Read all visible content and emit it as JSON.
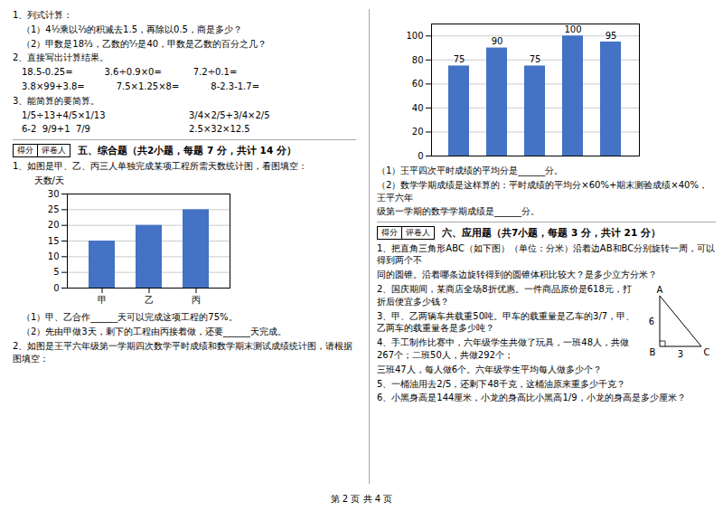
{
  "chart_data": [
    {
      "type": "bar",
      "categories": [
        "甲",
        "乙",
        "丙"
      ],
      "values": [
        15,
        20,
        25
      ],
      "color": "#4472C4",
      "ylabel": "天数/天",
      "ylim": [
        0,
        30
      ],
      "yticks": [
        0,
        5,
        10,
        15,
        20,
        25,
        30
      ],
      "grid": true,
      "annotations": [
        "1、列式计算：",
        "（1）4½乘以⅔的积减去1.5，再除以0.5，商是多少？",
        "（2）甲数是18⅔，乙数的⁵⁄₇是40，甲数是乙数的百分之几？",
        "2、直接写出计算结果。",
        "18.5-0.25=           3.6÷0.9×0=           7.2÷0.1=",
        "3.8×99+3.8=           7.5×1.25×8=           8-2.3-1.7=",
        "3、能简算的要简算。",
        "1/5÷13+4/5×1/13",
        "3/4×2/5+3/4×2/5",
        "6-2  9/9+1  7/9",
        "2.5×32×12.5",
        "得分",
        "评卷人",
        "五、综合题（共2小题，每题 7 分，共计 14 分）",
        "1、如图是甲、乙、丙三人单独完成某项工程所需天数统计图，看图填空：",
        "（1）甲、乙合作______天可以完成这项工程的75%。",
        "（2）先由甲做3天，剩下的工程由丙接着做，还要______天完成。",
        "2、如图是王平六年级第一学期四次数学平时成绩和数学期末测试成绩统计图，请根据图填空："
      ]
    },
    {
      "type": "bar",
      "categories": [
        null,
        null,
        null,
        null,
        null
      ],
      "values": [
        75,
        90,
        75,
        100,
        95
      ],
      "color": "#4472C4",
      "ylim": [
        0,
        110
      ],
      "yticks": [
        0,
        20,
        40,
        60,
        80,
        100
      ],
      "grid": true,
      "data_labels": true,
      "tick_labels": "y",
      "annotations": [
        "（1）王平四次平时成绩的平均分是______分。",
        "（2）数学学期成绩是这样算的：平时成绩的平均分×60%+期末测验成绩×40%，王平六年",
        "级第一学期的数学学期成绩是______分。",
        "得分",
        "评卷人",
        "六、应用题（共7小题，每题 3 分，共计 21 分）",
        "1、把直角三角形ABC（如下图）（单位：分米）沿着边AB和BC分别旋转一周，可以得到两个不",
        "同的圆锥。沿着哪条边旋转得到的圆锥体积比较大？是多少立方分米？",
        "A",
        "B",
        "C",
        "6",
        "3",
        "2、国庆期间，某商店全场8折优惠。一件商品原价是618元，打折后便宜多少钱？",
        "3、甲、乙两辆车共载重50吨。甲车的载重量是乙车的3/7，甲、乙两车的载重量各是多少吨？",
        "4、手工制作比赛中，六年级学生共做了玩具，一班48人，共做267个；二班50人，共做292个；",
        "三班47人，每人做6个。六年级学生平均每人做多少个？",
        "5、一桶油用去2/5，还剩下48千克，这桶油原来重多少千克？",
        "6、小黑身高是144厘米，小龙的身高比小黑高1/9，小龙的身高是多少厘米？",
        "第 2 页 共 4 页"
      ]
    }
  ]
}
